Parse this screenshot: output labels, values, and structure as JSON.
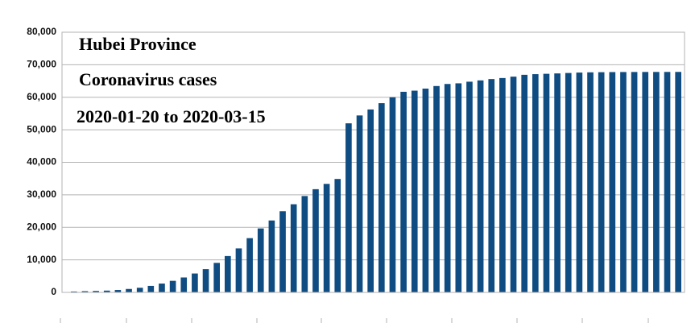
{
  "chart_data": {
    "type": "bar",
    "title": "Hubei Province",
    "subtitle": "Coronavirus cases",
    "annotation": "2020-01-20 to 2020-03-15",
    "values": [
      270,
      375,
      444,
      549,
      729,
      1052,
      1423,
      2000,
      2714,
      3554,
      4586,
      5806,
      7153,
      9074,
      11177,
      13522,
      16678,
      19665,
      22112,
      24953,
      27100,
      29631,
      31728,
      33366,
      34874,
      51986,
      54406,
      56249,
      58182,
      59989,
      61682,
      62031,
      62662,
      63454,
      64084,
      64287,
      64786,
      65187,
      65596,
      65914,
      66337,
      66907,
      67103,
      67217,
      67332,
      67466,
      67592,
      67666,
      67707,
      67743,
      67760,
      67773,
      67781,
      67786,
      67790,
      67794
    ],
    "color": "#0f4c81",
    "ylim": [
      0,
      80000
    ],
    "yticks": [
      0,
      {
        "value": 10000,
        "label": "10,000"
      },
      {
        "value": 20000,
        "label": "20,000"
      },
      {
        "value": 30000,
        "label": "30,000"
      },
      {
        "value": 40000,
        "label": "40,000"
      },
      {
        "value": 50000,
        "label": "50,000"
      },
      {
        "value": 60000,
        "label": "60,000"
      },
      {
        "value": 70000,
        "label": "70,000"
      },
      {
        "value": 80000,
        "label": "80,000"
      }
    ],
    "grid": true
  }
}
